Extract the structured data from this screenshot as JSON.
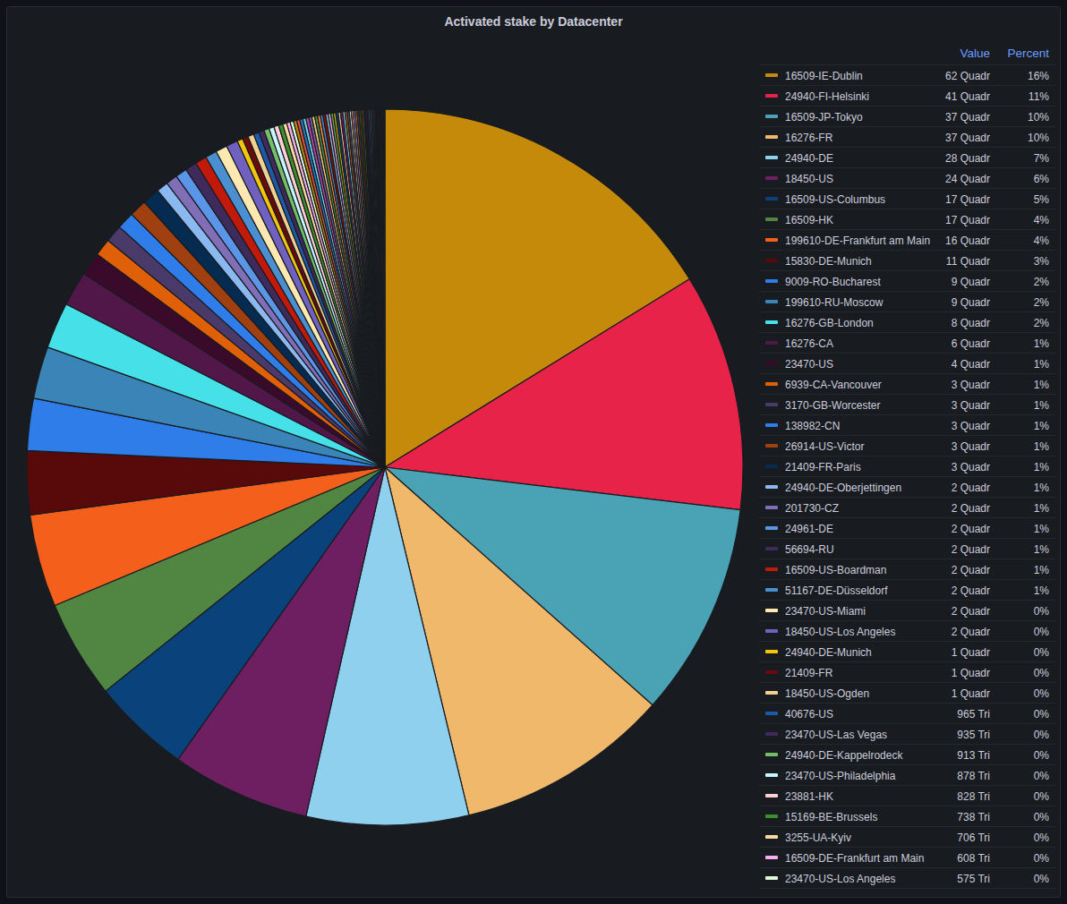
{
  "chart_data": {
    "type": "pie",
    "title": "Activated stake by Datacenter",
    "legend": "right",
    "legend_headers": [
      "Value",
      "Percent"
    ],
    "categories": [
      "16509-IE-Dublin",
      "24940-FI-Helsinki",
      "16509-JP-Tokyo",
      "16276-FR",
      "24940-DE",
      "18450-US",
      "16509-US-Columbus",
      "16509-HK",
      "199610-DE-Frankfurt am Main",
      "15830-DE-Munich",
      "9009-RO-Bucharest",
      "199610-RU-Moscow",
      "16276-GB-London",
      "16276-CA",
      "23470-US",
      "6939-CA-Vancouver",
      "3170-GB-Worcester",
      "138982-CN",
      "26914-US-Victor",
      "21409-FR-Paris",
      "24940-DE-Oberjettingen",
      "201730-CZ",
      "24961-DE",
      "56694-RU",
      "16509-US-Boardman",
      "51167-DE-Düsseldorf",
      "23470-US-Miami",
      "18450-US-Los Angeles",
      "24940-DE-Munich",
      "21409-FR",
      "18450-US-Ogden",
      "40676-US",
      "23470-US-Las Vegas",
      "24940-DE-Kappelrodeck",
      "23470-US-Philadelphia",
      "23881-HK",
      "15169-BE-Brussels",
      "3255-UA-Kyiv",
      "16509-DE-Frankfurt am Main",
      "23470-US-Los Angeles",
      null,
      null,
      null,
      null,
      null,
      null,
      null,
      null,
      null,
      null,
      null,
      null,
      null,
      null,
      null,
      null,
      null,
      null,
      null,
      null,
      null,
      null,
      null,
      null,
      null,
      null,
      null,
      null,
      null,
      null,
      null,
      null,
      null,
      null,
      null,
      null,
      null,
      null,
      null,
      null,
      null,
      null,
      null,
      null,
      null,
      null,
      null,
      null,
      null,
      null
    ],
    "values": [
      62000,
      41000,
      37000,
      37000,
      28000,
      24000,
      17000,
      17000,
      16000,
      11000,
      9000,
      9000,
      8000,
      6000,
      4000,
      3000,
      3000,
      3000,
      3000,
      3000,
      2000,
      2000,
      2000,
      2000,
      2000,
      2000,
      2000,
      2000,
      1000,
      1000,
      1000,
      965,
      935,
      913,
      878,
      828,
      738,
      706,
      608,
      575,
      560,
      550,
      540,
      530,
      520,
      510,
      500,
      490,
      480,
      470,
      460,
      450,
      440,
      430,
      420,
      410,
      400,
      390,
      380,
      370,
      360,
      350,
      340,
      330,
      320,
      310,
      300,
      290,
      280,
      270,
      260,
      250,
      240,
      230,
      220,
      210,
      200,
      190,
      180,
      170,
      160,
      150,
      140,
      130,
      120,
      110,
      100,
      90,
      80,
      70
    ],
    "value_labels": [
      "62 Quadr",
      "41 Quadr",
      "37 Quadr",
      "37 Quadr",
      "28 Quadr",
      "24 Quadr",
      "17 Quadr",
      "17 Quadr",
      "16 Quadr",
      "11 Quadr",
      "9 Quadr",
      "9 Quadr",
      "8 Quadr",
      "6 Quadr",
      "4 Quadr",
      "3 Quadr",
      "3 Quadr",
      "3 Quadr",
      "3 Quadr",
      "3 Quadr",
      "2 Quadr",
      "2 Quadr",
      "2 Quadr",
      "2 Quadr",
      "2 Quadr",
      "2 Quadr",
      "2 Quadr",
      "2 Quadr",
      "1 Quadr",
      "1 Quadr",
      "1 Quadr",
      "965 Tri",
      "935 Tri",
      "913 Tri",
      "878 Tri",
      "828 Tri",
      "738 Tri",
      "706 Tri",
      "608 Tri",
      "575 Tri",
      null,
      null,
      null,
      null,
      null,
      null,
      null,
      null,
      null,
      null,
      null,
      null,
      null,
      null,
      null,
      null,
      null,
      null,
      null,
      null,
      null,
      null,
      null,
      null,
      null,
      null,
      null,
      null,
      null,
      null,
      null,
      null,
      null,
      null,
      null,
      null,
      null,
      null,
      null,
      null,
      null,
      null,
      null,
      null,
      null,
      null,
      null,
      null,
      null,
      null
    ],
    "percents": [
      16,
      11,
      10,
      10,
      7,
      6,
      5,
      4,
      4,
      3,
      2,
      2,
      2,
      1,
      1,
      1,
      1,
      1,
      1,
      1,
      1,
      1,
      1,
      1,
      1,
      1,
      0,
      0,
      0,
      0,
      0,
      0,
      0,
      0,
      0,
      0,
      0,
      0,
      0,
      0,
      null,
      null,
      null,
      null,
      null,
      null,
      null,
      null,
      null,
      null,
      null,
      null,
      null,
      null,
      null,
      null,
      null,
      null,
      null,
      null,
      null,
      null,
      null,
      null,
      null,
      null,
      null,
      null,
      null,
      null,
      null,
      null,
      null,
      null,
      null,
      null,
      null,
      null,
      null,
      null,
      null,
      null,
      null,
      null,
      null,
      null,
      null,
      null,
      null,
      null
    ],
    "percent_labels": [
      "16%",
      "11%",
      "10%",
      "10%",
      "7%",
      "6%",
      "5%",
      "4%",
      "4%",
      "3%",
      "2%",
      "2%",
      "2%",
      "1%",
      "1%",
      "1%",
      "1%",
      "1%",
      "1%",
      "1%",
      "1%",
      "1%",
      "1%",
      "1%",
      "1%",
      "1%",
      "0%",
      "0%",
      "0%",
      "0%",
      "0%",
      "0%",
      "0%",
      "0%",
      "0%",
      "0%",
      "0%",
      "0%",
      "0%",
      "0%",
      null,
      null,
      null,
      null,
      null,
      null,
      null,
      null,
      null,
      null,
      null,
      null,
      null,
      null,
      null,
      null,
      null,
      null,
      null,
      null,
      null,
      null,
      null,
      null,
      null,
      null,
      null,
      null,
      null,
      null,
      null,
      null,
      null,
      null,
      null,
      null,
      null,
      null,
      null,
      null,
      null,
      null,
      null,
      null,
      null,
      null,
      null,
      null,
      null,
      null
    ],
    "colors": [
      "#c58a0a",
      "#e8234a",
      "#4aa3b5",
      "#f0b86a",
      "#8fd0ee",
      "#6e1f62",
      "#0a437c",
      "#508642",
      "#f4601c",
      "#580a0a",
      "#2f7de8",
      "#3a84b8",
      "#45e0e8",
      "#511749",
      "#3a0a2a",
      "#e0600a",
      "#4a3a6a",
      "#2f7de8",
      "#a04010",
      "#052b51",
      "#8ab8f0",
      "#806eb7",
      "#5a95e8",
      "#3f2b5b",
      "#c21a0a",
      "#4a8fd0",
      "#fce8b0",
      "#7060c0",
      "#f2c40c",
      "#6b0a0a",
      "#f2d090",
      "#1c5aa8",
      "#3f2b5b",
      "#73bf69",
      "#c8f4ff",
      "#fad0d0",
      "#3d8f2e",
      "#f9d9a0",
      "#f5b0f0",
      "#e0f9d7",
      "#b8860b",
      "#e24d42",
      "#1f78c1",
      "#6ed0e0",
      "#ba43a9",
      "#705da0",
      "#f2c96d",
      "#508642",
      "#ef843c",
      "#447ebc",
      "#890f02",
      "#82b5d8",
      "#e5a8e2",
      "#629e51",
      "#cca300",
      "#0a437c",
      "#f9ba8f",
      "#6d1f62",
      "#70dbed",
      "#c15c17",
      "#584477",
      "#b7dbab",
      "#f29191",
      "#aea2e0",
      "#e0752d",
      "#2f575e",
      "#99440a",
      "#3f6833",
      "#967302",
      "#052b51",
      "#511749",
      "#3f2b5b",
      "#5195ce",
      "#d683ce",
      "#806eb7",
      "#64b0c8",
      "#9ac48a",
      "#ea6460",
      "#bf1b00",
      "#0a50a1",
      "#962d82",
      "#614d93",
      "#e5ac0e",
      "#58140c",
      "#f9934e",
      "#65c5db",
      "#f2c96d",
      "#3f6833",
      "#2f575e",
      "#806eb7"
    ]
  }
}
